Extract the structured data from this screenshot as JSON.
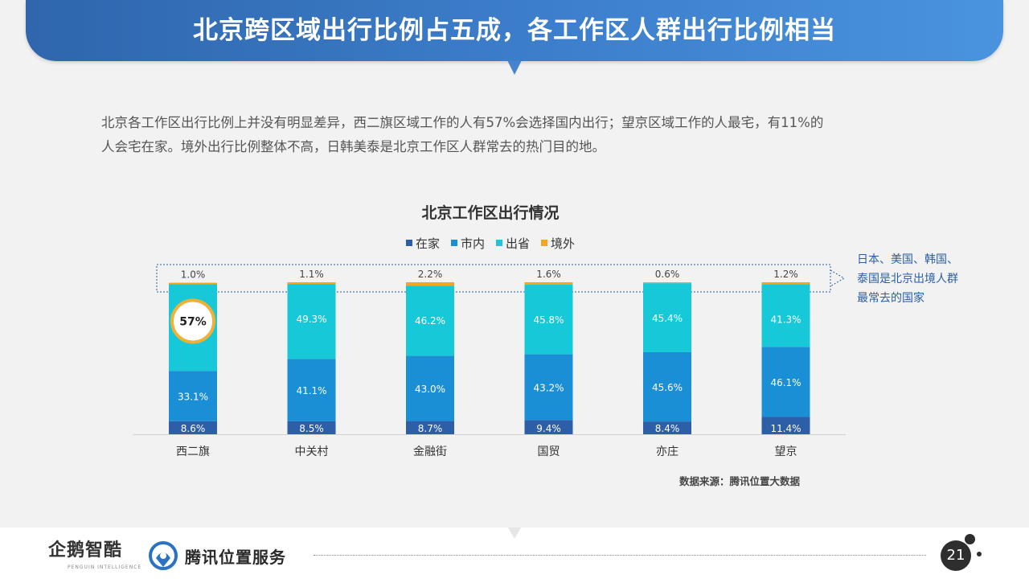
{
  "header": {
    "title": "北京跨区域出行比例占五成，各工作区人群出行比例相当"
  },
  "intro": {
    "line1": "北京各工作区出行比例上并没有明显差异，西二旗区域工作的人有57%会选择国内出行；望京区域工作的人最宅，有11%的",
    "line2": "人会宅在家。境外出行比例整体不高，日韩美泰是北京工作区人群常去的热门目的地。"
  },
  "annotation": {
    "line1": "日本、美国、韩国、",
    "line2": "泰国是北京出境人群",
    "line3": "最常去的国家"
  },
  "source": "数据来源：腾讯位置大数据",
  "footer": {
    "logo1": "企鹅智酷",
    "logo1_sub": "PENGUIN INTELLIGENCE",
    "logo2": "腾讯位置服务",
    "page_number": "21"
  },
  "colors": {
    "home": "#2c5fa8",
    "city": "#1a8fd6",
    "province": "#17c9d8",
    "abroad": "#f4a61c",
    "highlight_ring": "#f2b134"
  },
  "chart_data": {
    "type": "bar",
    "stacked": true,
    "percent": true,
    "title": "北京工作区出行情况",
    "categories": [
      "西二旗",
      "中关村",
      "金融街",
      "国贸",
      "亦庄",
      "望京"
    ],
    "series": [
      {
        "name": "在家",
        "color": "#2c5fa8",
        "values": [
          8.6,
          8.5,
          8.7,
          9.4,
          8.4,
          11.4
        ],
        "labels": [
          "8.6%",
          "8.5%",
          "8.7%",
          "9.4%",
          "8.4%",
          "11.4%"
        ]
      },
      {
        "name": "市内",
        "color": "#1a8fd6",
        "values": [
          33.1,
          41.1,
          43.0,
          43.2,
          45.6,
          46.1
        ],
        "labels": [
          "33.1%",
          "41.1%",
          "43.0%",
          "43.2%",
          "45.6%",
          "46.1%"
        ]
      },
      {
        "name": "出省",
        "color": "#17c9d8",
        "values": [
          57.0,
          49.3,
          46.2,
          45.8,
          45.4,
          41.3
        ],
        "labels": [
          "57%",
          "49.3%",
          "46.2%",
          "45.8%",
          "45.4%",
          "41.3%"
        ]
      },
      {
        "name": "境外",
        "color": "#f4a61c",
        "values": [
          1.0,
          1.1,
          2.2,
          1.6,
          0.6,
          1.2
        ],
        "labels": [
          "1.0%",
          "1.1%",
          "2.2%",
          "1.6%",
          "0.6%",
          "1.2%"
        ]
      }
    ],
    "highlight": {
      "category": "西二旗",
      "series": "出省"
    },
    "ylim": [
      0,
      100
    ],
    "legend_position": "top",
    "grid": false
  }
}
